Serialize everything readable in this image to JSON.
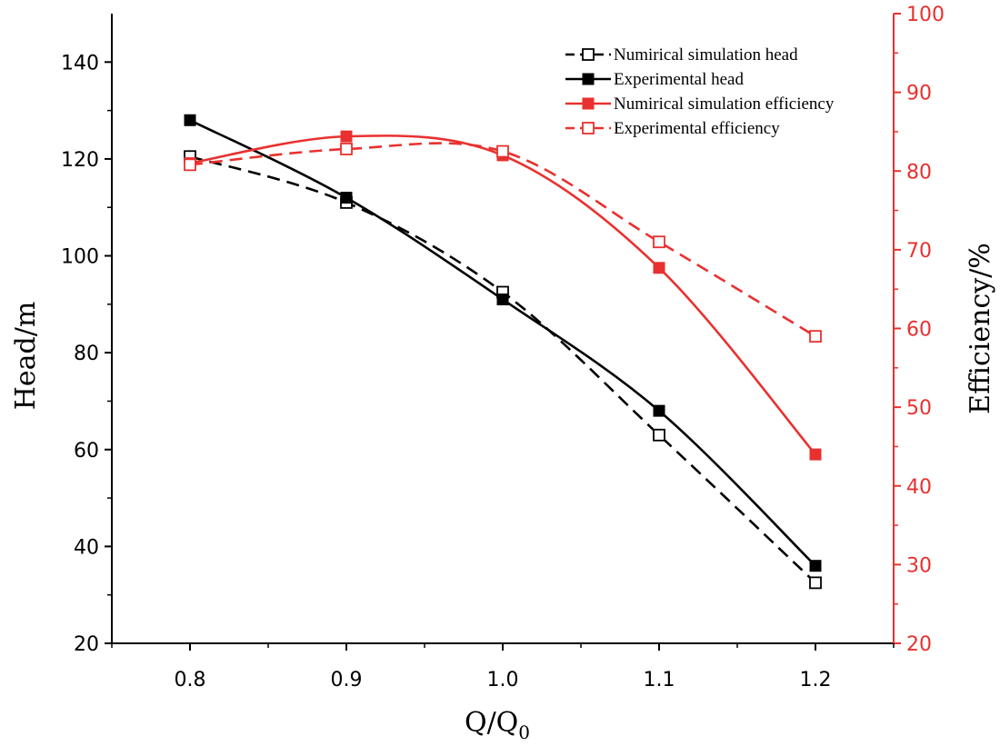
{
  "chart_data": {
    "type": "line",
    "x": [
      0.8,
      0.9,
      1.0,
      1.1,
      1.2
    ],
    "x_tick_labels": [
      "0.8",
      "0.9",
      "1.0",
      "1.1",
      "1.2"
    ],
    "xlim": [
      0.75,
      1.25
    ],
    "xlabel_main": "Q/Q",
    "xlabel_sub": "0",
    "ylabel_left": "Head/m",
    "ylim_left": [
      20,
      150
    ],
    "y_ticks_left": [
      20,
      40,
      60,
      80,
      100,
      120,
      140
    ],
    "ylabel_right": "Efficiency/%",
    "ylim_right": [
      20,
      100
    ],
    "y_ticks_right": [
      20,
      30,
      40,
      50,
      60,
      70,
      80,
      90,
      100
    ],
    "legend_position": "top-right",
    "colors": {
      "head": "#000000",
      "efficiency": "#e8312f"
    },
    "series": [
      {
        "name": "Numirical simulation head",
        "axis": "left",
        "color": "#000000",
        "dash": true,
        "marker": "open-square",
        "values": [
          120.5,
          111,
          92.5,
          63,
          32.5
        ]
      },
      {
        "name": "Experimental head",
        "axis": "left",
        "color": "#000000",
        "dash": false,
        "marker": "filled-square",
        "values": [
          128,
          112,
          91,
          68,
          36
        ]
      },
      {
        "name": "Numirical simulation efficiency",
        "axis": "right",
        "color": "#e8312f",
        "dash": false,
        "marker": "filled-square",
        "values": [
          81,
          84.4,
          82,
          67.7,
          44
        ]
      },
      {
        "name": "Experimental efficiency",
        "axis": "right",
        "color": "#e8312f",
        "dash": true,
        "marker": "open-square",
        "values": [
          80.8,
          82.8,
          82.5,
          71,
          59
        ]
      }
    ]
  }
}
